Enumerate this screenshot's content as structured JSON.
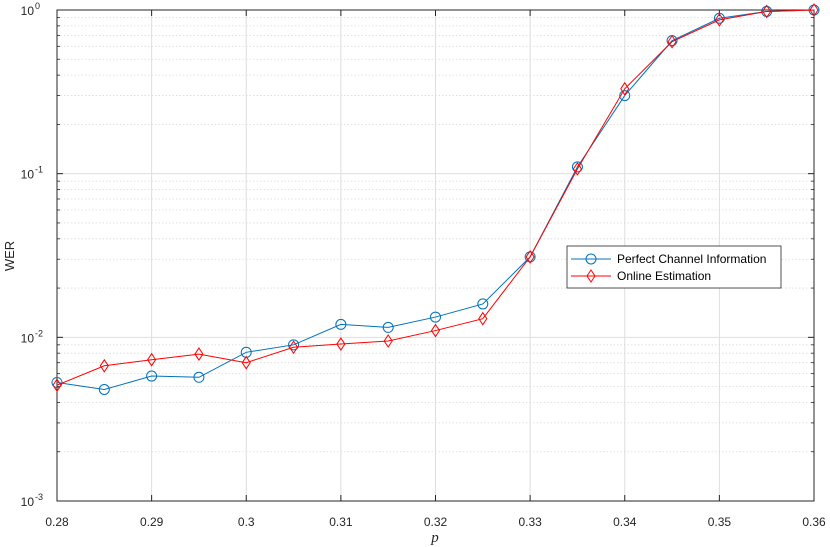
{
  "chart_data": {
    "type": "line",
    "title": "",
    "xlabel": "p",
    "ylabel": "WER",
    "yscale": "log",
    "xlim": [
      0.28,
      0.36
    ],
    "ylim": [
      0.001,
      1
    ],
    "grid": true,
    "legend_position": "right",
    "x_ticks": [
      "0.28",
      "0.29",
      "0.3",
      "0.31",
      "0.32",
      "0.33",
      "0.34",
      "0.35",
      "0.36"
    ],
    "y_ticks": [
      {
        "base": "10",
        "exp": "-3",
        "value": 0.001
      },
      {
        "base": "10",
        "exp": "-2",
        "value": 0.01
      },
      {
        "base": "10",
        "exp": "-1",
        "value": 0.1
      },
      {
        "base": "10",
        "exp": "0",
        "value": 1
      }
    ],
    "x": [
      0.28,
      0.285,
      0.29,
      0.295,
      0.3,
      0.305,
      0.31,
      0.315,
      0.32,
      0.325,
      0.33,
      0.335,
      0.34,
      0.345,
      0.35,
      0.355,
      0.36
    ],
    "series": [
      {
        "name": "Perfect Channel Information",
        "color": "#0072BD",
        "marker": "circle",
        "values": [
          0.0053,
          0.0048,
          0.0058,
          0.0057,
          0.0081,
          0.009,
          0.012,
          0.0115,
          0.0133,
          0.016,
          0.031,
          0.11,
          0.3,
          0.65,
          0.89,
          0.98,
          1.0
        ]
      },
      {
        "name": "Online Estimation",
        "color": "#FF0000",
        "marker": "diamond",
        "values": [
          0.0051,
          0.0067,
          0.0073,
          0.0079,
          0.007,
          0.0087,
          0.0091,
          0.0095,
          0.011,
          0.013,
          0.031,
          0.107,
          0.33,
          0.64,
          0.87,
          0.98,
          1.0
        ]
      }
    ]
  }
}
